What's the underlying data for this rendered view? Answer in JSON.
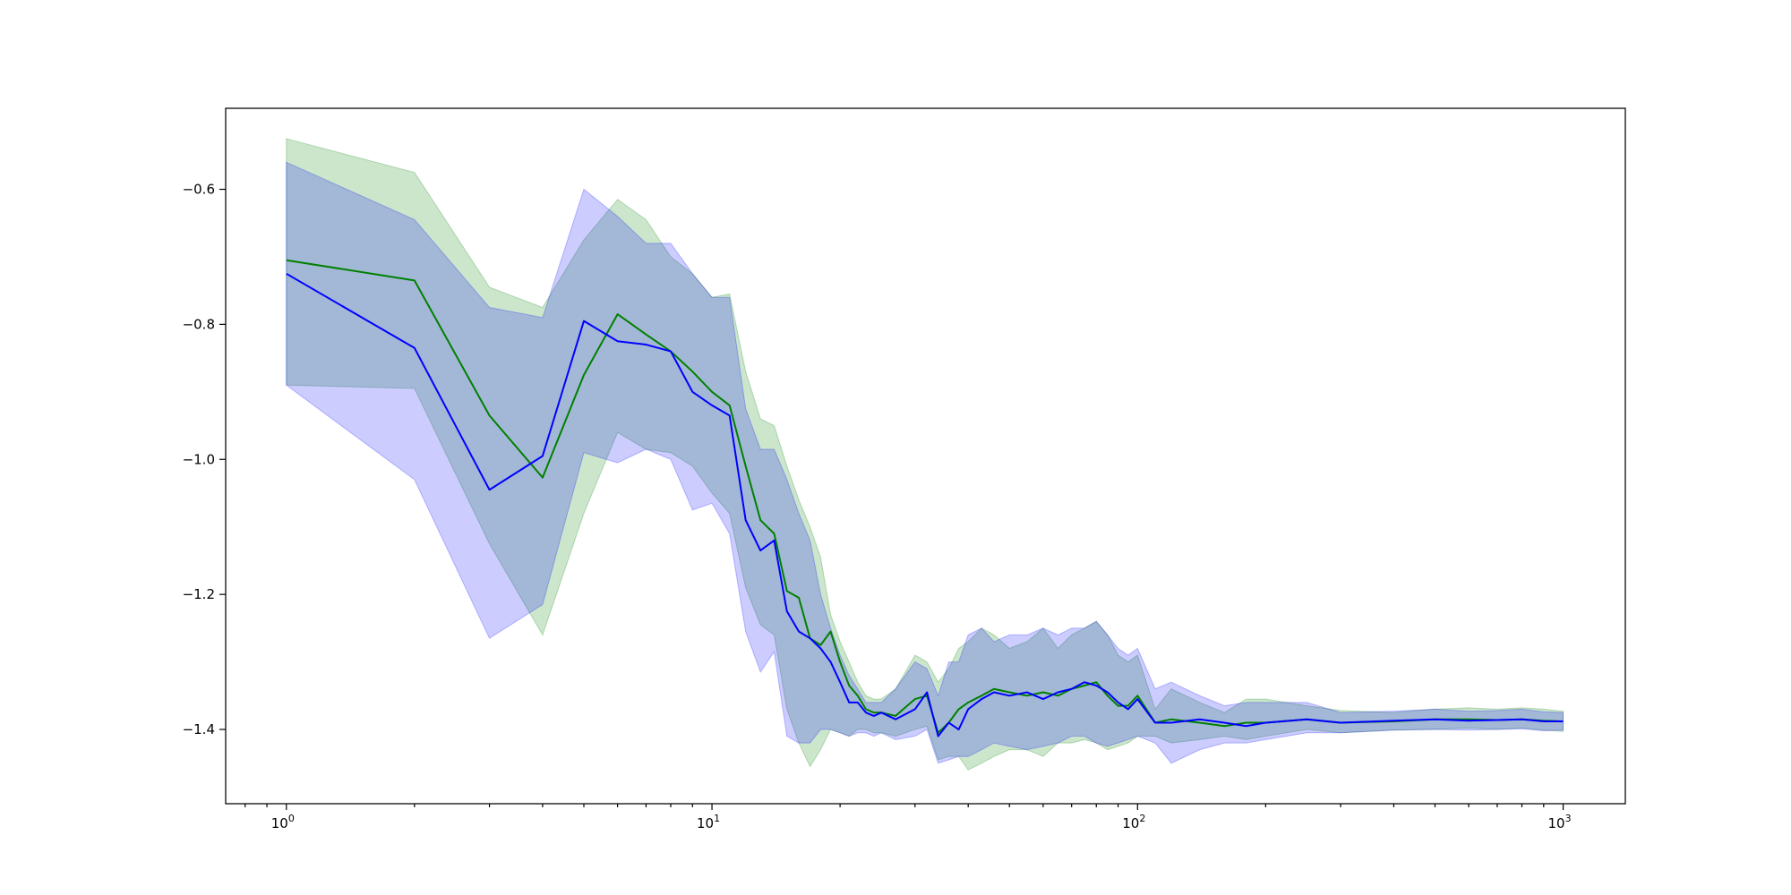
{
  "chart_data": {
    "type": "line",
    "title": "",
    "xlabel": "",
    "ylabel": "",
    "x_scale": "log",
    "xlim": [
      0.72,
      1400
    ],
    "ylim": [
      -1.51,
      -0.48
    ],
    "grid": false,
    "x_ticks": [
      {
        "value": 1,
        "base": "10",
        "exp": "0"
      },
      {
        "value": 10,
        "base": "10",
        "exp": "1"
      },
      {
        "value": 100,
        "base": "10",
        "exp": "2"
      },
      {
        "value": 1000,
        "base": "10",
        "exp": "3"
      }
    ],
    "y_ticks": [
      {
        "value": -0.6,
        "label": "−0.6"
      },
      {
        "value": -0.8,
        "label": "−0.8"
      },
      {
        "value": -1.0,
        "label": "−1.0"
      },
      {
        "value": -1.2,
        "label": "−1.2"
      },
      {
        "value": -1.4,
        "label": "−1.4"
      }
    ],
    "series": [
      {
        "color": "#008000",
        "band_color": "#008000",
        "band_opacity": 0.2,
        "x": [
          1,
          2,
          3,
          4,
          5,
          6,
          7,
          8,
          9,
          10,
          11,
          12,
          13,
          14,
          15,
          16,
          17,
          18,
          19,
          20,
          21,
          22,
          23,
          24,
          25,
          27,
          30,
          32,
          34,
          36,
          38,
          40,
          43,
          46,
          50,
          55,
          60,
          65,
          70,
          75,
          80,
          85,
          90,
          95,
          100,
          110,
          120,
          140,
          160,
          180,
          200,
          250,
          300,
          400,
          500,
          600,
          700,
          800,
          900,
          1000
        ],
        "y": [
          -0.705,
          -0.735,
          -0.935,
          -1.027,
          -0.875,
          -0.785,
          -0.815,
          -0.84,
          -0.87,
          -0.9,
          -0.92,
          -1.01,
          -1.09,
          -1.11,
          -1.195,
          -1.205,
          -1.265,
          -1.275,
          -1.255,
          -1.3,
          -1.335,
          -1.35,
          -1.37,
          -1.375,
          -1.375,
          -1.38,
          -1.355,
          -1.35,
          -1.405,
          -1.39,
          -1.37,
          -1.36,
          -1.35,
          -1.34,
          -1.345,
          -1.35,
          -1.345,
          -1.35,
          -1.34,
          -1.335,
          -1.33,
          -1.35,
          -1.365,
          -1.365,
          -1.35,
          -1.39,
          -1.385,
          -1.39,
          -1.395,
          -1.39,
          -1.39,
          -1.385,
          -1.39,
          -1.388,
          -1.385,
          -1.385,
          -1.386,
          -1.385,
          -1.387,
          -1.388
        ],
        "upper": [
          -0.525,
          -0.575,
          -0.745,
          -0.775,
          -0.675,
          -0.615,
          -0.645,
          -0.7,
          -0.725,
          -0.76,
          -0.755,
          -0.87,
          -0.94,
          -0.95,
          -1.01,
          -1.06,
          -1.1,
          -1.145,
          -1.23,
          -1.27,
          -1.3,
          -1.33,
          -1.35,
          -1.355,
          -1.355,
          -1.34,
          -1.29,
          -1.3,
          -1.33,
          -1.31,
          -1.28,
          -1.27,
          -1.25,
          -1.26,
          -1.28,
          -1.27,
          -1.25,
          -1.28,
          -1.26,
          -1.25,
          -1.24,
          -1.26,
          -1.29,
          -1.3,
          -1.29,
          -1.37,
          -1.34,
          -1.36,
          -1.375,
          -1.355,
          -1.355,
          -1.365,
          -1.372,
          -1.375,
          -1.37,
          -1.368,
          -1.37,
          -1.368,
          -1.37,
          -1.373
        ],
        "lower": [
          -0.89,
          -0.895,
          -1.125,
          -1.26,
          -1.08,
          -0.96,
          -0.985,
          -0.99,
          -1.01,
          -1.05,
          -1.08,
          -1.19,
          -1.245,
          -1.26,
          -1.37,
          -1.42,
          -1.455,
          -1.43,
          -1.4,
          -1.405,
          -1.41,
          -1.4,
          -1.4,
          -1.405,
          -1.405,
          -1.41,
          -1.4,
          -1.395,
          -1.445,
          -1.44,
          -1.44,
          -1.46,
          -1.45,
          -1.44,
          -1.43,
          -1.43,
          -1.44,
          -1.42,
          -1.42,
          -1.415,
          -1.42,
          -1.43,
          -1.425,
          -1.42,
          -1.41,
          -1.41,
          -1.42,
          -1.415,
          -1.41,
          -1.415,
          -1.41,
          -1.4,
          -1.405,
          -1.401,
          -1.4,
          -1.398,
          -1.4,
          -1.398,
          -1.401,
          -1.403
        ]
      },
      {
        "color": "#0000ff",
        "band_color": "#0000ff",
        "band_opacity": 0.2,
        "x": [
          1,
          2,
          3,
          4,
          5,
          6,
          7,
          8,
          9,
          10,
          11,
          12,
          13,
          14,
          15,
          16,
          17,
          18,
          19,
          20,
          21,
          22,
          23,
          24,
          25,
          27,
          30,
          32,
          34,
          36,
          38,
          40,
          43,
          46,
          50,
          55,
          60,
          65,
          70,
          75,
          80,
          85,
          90,
          95,
          100,
          110,
          120,
          140,
          160,
          180,
          200,
          250,
          300,
          400,
          500,
          600,
          700,
          800,
          900,
          1000
        ],
        "y": [
          -0.725,
          -0.835,
          -1.045,
          -0.995,
          -0.795,
          -0.825,
          -0.83,
          -0.84,
          -0.9,
          -0.92,
          -0.935,
          -1.09,
          -1.135,
          -1.12,
          -1.225,
          -1.255,
          -1.265,
          -1.28,
          -1.3,
          -1.33,
          -1.36,
          -1.36,
          -1.375,
          -1.38,
          -1.375,
          -1.385,
          -1.37,
          -1.345,
          -1.41,
          -1.39,
          -1.4,
          -1.37,
          -1.355,
          -1.345,
          -1.35,
          -1.345,
          -1.355,
          -1.345,
          -1.34,
          -1.33,
          -1.335,
          -1.345,
          -1.36,
          -1.37,
          -1.355,
          -1.39,
          -1.39,
          -1.385,
          -1.39,
          -1.395,
          -1.39,
          -1.385,
          -1.39,
          -1.387,
          -1.385,
          -1.387,
          -1.386,
          -1.385,
          -1.388,
          -1.388
        ],
        "upper": [
          -0.56,
          -0.645,
          -0.775,
          -0.79,
          -0.6,
          -0.64,
          -0.68,
          -0.68,
          -0.725,
          -0.76,
          -0.76,
          -0.925,
          -0.985,
          -0.985,
          -1.03,
          -1.08,
          -1.12,
          -1.2,
          -1.25,
          -1.29,
          -1.32,
          -1.34,
          -1.36,
          -1.36,
          -1.36,
          -1.34,
          -1.3,
          -1.31,
          -1.35,
          -1.3,
          -1.3,
          -1.26,
          -1.25,
          -1.27,
          -1.26,
          -1.26,
          -1.25,
          -1.26,
          -1.25,
          -1.25,
          -1.24,
          -1.26,
          -1.28,
          -1.29,
          -1.28,
          -1.34,
          -1.33,
          -1.35,
          -1.365,
          -1.36,
          -1.36,
          -1.36,
          -1.375,
          -1.373,
          -1.37,
          -1.373,
          -1.372,
          -1.37,
          -1.374,
          -1.375
        ],
        "lower": [
          -0.89,
          -1.03,
          -1.265,
          -1.215,
          -0.99,
          -1.005,
          -0.985,
          -1.0,
          -1.075,
          -1.065,
          -1.11,
          -1.255,
          -1.315,
          -1.285,
          -1.41,
          -1.42,
          -1.42,
          -1.4,
          -1.4,
          -1.405,
          -1.41,
          -1.405,
          -1.405,
          -1.41,
          -1.405,
          -1.415,
          -1.41,
          -1.4,
          -1.45,
          -1.445,
          -1.44,
          -1.44,
          -1.43,
          -1.42,
          -1.425,
          -1.43,
          -1.425,
          -1.42,
          -1.41,
          -1.41,
          -1.42,
          -1.425,
          -1.42,
          -1.415,
          -1.41,
          -1.42,
          -1.45,
          -1.43,
          -1.42,
          -1.42,
          -1.415,
          -1.405,
          -1.405,
          -1.401,
          -1.4,
          -1.401,
          -1.4,
          -1.399,
          -1.402,
          -1.401
        ]
      }
    ]
  }
}
